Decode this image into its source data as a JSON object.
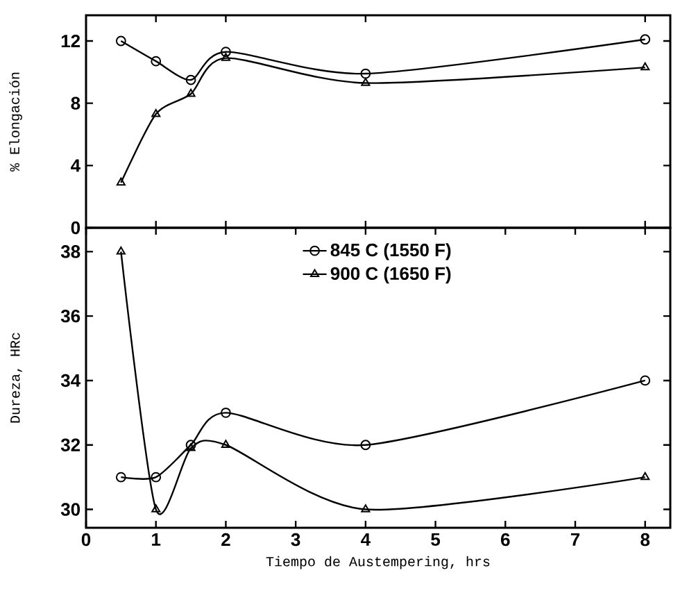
{
  "chart_data": [
    {
      "type": "line",
      "ylabel": "% Elongación",
      "xlim": [
        0,
        8.36
      ],
      "ylim": [
        0,
        13.65
      ],
      "yticks": [
        0,
        4,
        8,
        12
      ],
      "tick_labels": "y",
      "series": [
        {
          "color": "#000000",
          "marker": "circle",
          "x": [
            0.5,
            1,
            1.5,
            2,
            4,
            8
          ],
          "values": [
            12,
            10.7,
            9.5,
            11.3,
            9.9,
            12.1
          ]
        },
        {
          "color": "#000000",
          "marker": "triangle",
          "x": [
            0.5,
            1,
            1.5,
            2,
            4,
            8
          ],
          "values": [
            2.9,
            7.3,
            8.6,
            10.9,
            9.3,
            10.3
          ]
        }
      ]
    },
    {
      "type": "line",
      "xlabel": "Tiempo de Austempering, hrs",
      "ylabel": "Dureza, HRc",
      "xlim": [
        0,
        8.36
      ],
      "ylim": [
        29.43,
        38.74
      ],
      "xticks": [
        0,
        1,
        2,
        3,
        4,
        5,
        6,
        7,
        8
      ],
      "yticks": [
        30,
        32,
        34,
        36,
        38
      ],
      "legend": "top",
      "series": [
        {
          "name": "845 C (1550 F)",
          "color": "#000000",
          "marker": "circle",
          "x": [
            0.5,
            1,
            1.5,
            2,
            4,
            8
          ],
          "values": [
            31,
            31,
            32,
            33,
            32,
            34
          ]
        },
        {
          "name": "900 C (1650 F)",
          "color": "#000000",
          "marker": "triangle",
          "x": [
            0.5,
            1,
            1.5,
            2,
            4,
            8
          ],
          "values": [
            38,
            30,
            31.9,
            32,
            30,
            31
          ]
        }
      ]
    }
  ]
}
